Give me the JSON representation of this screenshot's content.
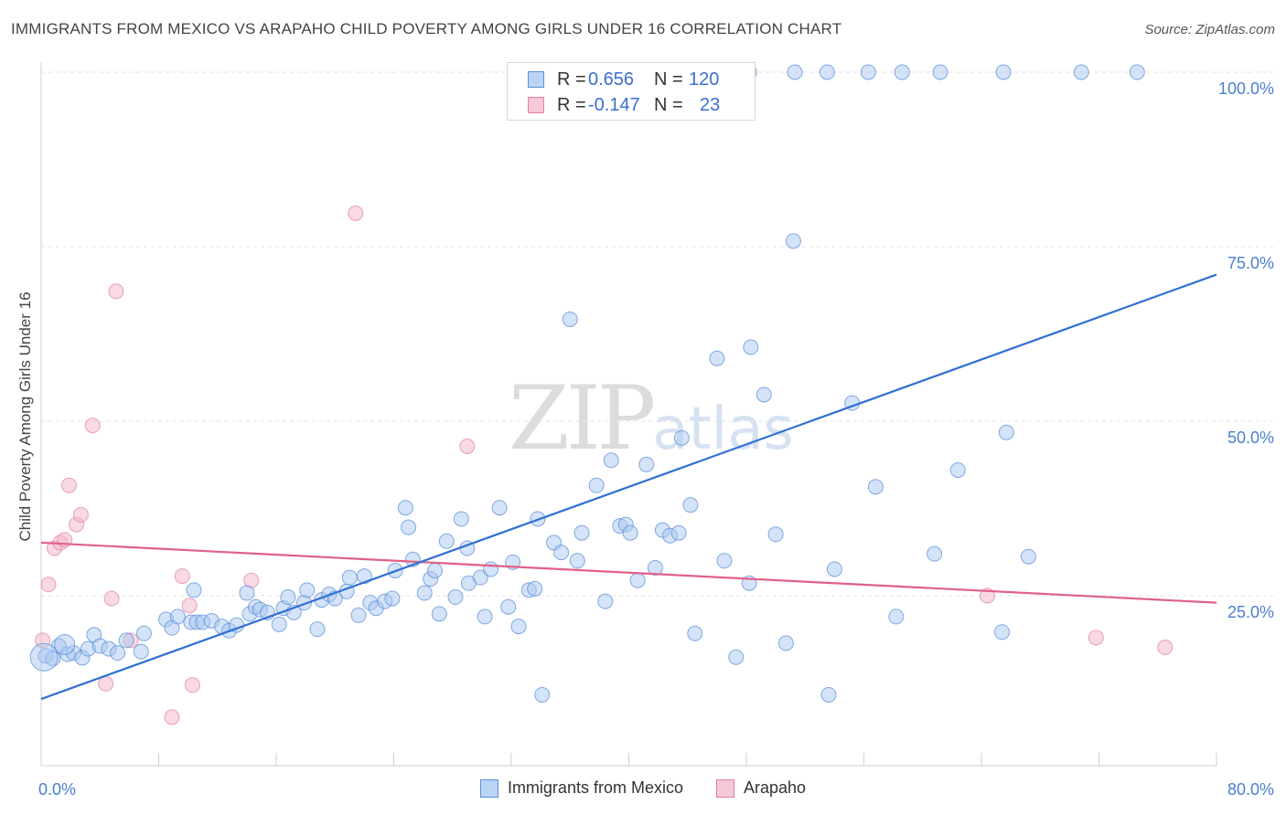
{
  "header": {
    "title": "IMMIGRANTS FROM MEXICO VS ARAPAHO CHILD POVERTY AMONG GIRLS UNDER 16 CORRELATION CHART",
    "source": "Source: ZipAtlas.com"
  },
  "watermark": {
    "zip": "ZIP",
    "atlas": "atlas"
  },
  "legend": {
    "rows": [
      {
        "r_label": "R =",
        "r_value": "0.656",
        "n_label": "N =",
        "n_value": "120"
      },
      {
        "r_label": "R =",
        "r_value": "-0.147",
        "n_label": "N =",
        "n_value": "23"
      }
    ]
  },
  "bottom_legend": {
    "series1": "Immigrants from Mexico",
    "series2": "Arapaho"
  },
  "chart_data": {
    "type": "scatter",
    "title": "IMMIGRANTS FROM MEXICO VS ARAPAHO CHILD POVERTY AMONG GIRLS UNDER 16 CORRELATION CHART",
    "xlabel": "",
    "ylabel": "Child Poverty Among Girls Under 16",
    "xlim": [
      0,
      80
    ],
    "ylim": [
      0,
      100
    ],
    "x_tick_labels": [
      "0.0%",
      "80.0%"
    ],
    "y_ticks": [
      {
        "value": 100,
        "label": "100.0%"
      },
      {
        "value": 75,
        "label": "75.0%"
      },
      {
        "value": 50,
        "label": "50.0%"
      },
      {
        "value": 25,
        "label": "25.0%"
      }
    ],
    "grid": true,
    "colors": {
      "series1": "#5b8fd9",
      "series1_fill": "#a9c8f0",
      "series2": "#e07fa0",
      "series2_fill": "#f4b9cc",
      "trend1": "#2f6fd3",
      "trend2": "#e0608a"
    },
    "series": [
      {
        "name": "Immigrants from Mexico",
        "trend": {
          "x": [
            0,
            80
          ],
          "y": [
            10.2,
            71.0
          ]
        },
        "points": [
          [
            0.3,
            16.4
          ],
          [
            0.8,
            16.0
          ],
          [
            1.2,
            17.8
          ],
          [
            1.8,
            16.6
          ],
          [
            2.2,
            16.8
          ],
          [
            2.8,
            16.1
          ],
          [
            3.2,
            17.4
          ],
          [
            3.6,
            19.4
          ],
          [
            4.0,
            17.8
          ],
          [
            4.6,
            17.4
          ],
          [
            5.2,
            16.8
          ],
          [
            5.8,
            18.6
          ],
          [
            6.8,
            17.0
          ],
          [
            7.0,
            19.6
          ],
          [
            8.5,
            21.6
          ],
          [
            8.9,
            20.4
          ],
          [
            9.3,
            22.0
          ],
          [
            10.2,
            21.2
          ],
          [
            10.4,
            25.8
          ],
          [
            10.6,
            21.2
          ],
          [
            11.0,
            21.2
          ],
          [
            11.6,
            21.4
          ],
          [
            12.3,
            20.6
          ],
          [
            12.8,
            20.0
          ],
          [
            13.3,
            20.8
          ],
          [
            14.0,
            25.4
          ],
          [
            14.2,
            22.4
          ],
          [
            14.6,
            23.4
          ],
          [
            14.9,
            23.0
          ],
          [
            15.4,
            22.6
          ],
          [
            16.2,
            20.9
          ],
          [
            16.5,
            23.2
          ],
          [
            16.8,
            24.8
          ],
          [
            17.2,
            22.6
          ],
          [
            17.9,
            24.0
          ],
          [
            18.1,
            25.8
          ],
          [
            18.8,
            20.2
          ],
          [
            19.1,
            24.4
          ],
          [
            19.6,
            25.2
          ],
          [
            20.0,
            24.6
          ],
          [
            20.8,
            25.6
          ],
          [
            21.0,
            27.6
          ],
          [
            21.6,
            22.2
          ],
          [
            22.0,
            27.8
          ],
          [
            22.4,
            24.0
          ],
          [
            22.8,
            23.2
          ],
          [
            23.4,
            24.2
          ],
          [
            23.9,
            24.6
          ],
          [
            24.1,
            28.6
          ],
          [
            24.8,
            37.6
          ],
          [
            25.0,
            34.8
          ],
          [
            25.3,
            30.2
          ],
          [
            26.1,
            25.4
          ],
          [
            26.5,
            27.4
          ],
          [
            26.8,
            28.6
          ],
          [
            27.1,
            22.4
          ],
          [
            27.6,
            32.8
          ],
          [
            28.2,
            24.8
          ],
          [
            28.6,
            36.0
          ],
          [
            29.0,
            31.8
          ],
          [
            29.1,
            26.8
          ],
          [
            29.9,
            27.6
          ],
          [
            30.2,
            22.0
          ],
          [
            30.6,
            28.8
          ],
          [
            31.2,
            37.6
          ],
          [
            31.8,
            23.4
          ],
          [
            32.1,
            29.8
          ],
          [
            32.5,
            20.6
          ],
          [
            33.2,
            25.8
          ],
          [
            33.6,
            26.0
          ],
          [
            33.8,
            36.0
          ],
          [
            34.1,
            10.8
          ],
          [
            34.9,
            32.6
          ],
          [
            35.4,
            31.2
          ],
          [
            36.0,
            64.6
          ],
          [
            36.5,
            30.0
          ],
          [
            36.8,
            34.0
          ],
          [
            37.8,
            40.8
          ],
          [
            38.4,
            24.2
          ],
          [
            38.8,
            44.4
          ],
          [
            39.4,
            35.0
          ],
          [
            39.8,
            35.2
          ],
          [
            40.1,
            34.0
          ],
          [
            40.6,
            27.2
          ],
          [
            41.2,
            43.8
          ],
          [
            41.8,
            29.0
          ],
          [
            42.3,
            34.4
          ],
          [
            42.8,
            33.6
          ],
          [
            43.4,
            34.0
          ],
          [
            43.6,
            47.6
          ],
          [
            44.2,
            38.0
          ],
          [
            44.5,
            19.6
          ],
          [
            46.0,
            59.0
          ],
          [
            46.5,
            30.0
          ],
          [
            47.3,
            16.2
          ],
          [
            48.2,
            26.8
          ],
          [
            48.3,
            60.6
          ],
          [
            49.2,
            53.8
          ],
          [
            50.0,
            33.8
          ],
          [
            50.7,
            18.2
          ],
          [
            51.2,
            75.8
          ],
          [
            53.6,
            10.8
          ],
          [
            54.0,
            28.8
          ],
          [
            55.2,
            52.6
          ],
          [
            56.8,
            40.6
          ],
          [
            58.2,
            22.0
          ],
          [
            60.8,
            31.0
          ],
          [
            62.4,
            43.0
          ],
          [
            65.4,
            19.8
          ],
          [
            65.7,
            48.4
          ],
          [
            67.2,
            30.6
          ],
          [
            48.2,
            100.0
          ],
          [
            51.3,
            100.0
          ],
          [
            53.5,
            100.0
          ],
          [
            56.3,
            100.0
          ],
          [
            58.6,
            100.0
          ],
          [
            61.2,
            100.0
          ],
          [
            65.5,
            100.0
          ],
          [
            70.8,
            100.0
          ],
          [
            74.6,
            100.0
          ]
        ],
        "big_points": [
          [
            0.2,
            16.2
          ],
          [
            1.6,
            18.0
          ]
        ]
      },
      {
        "name": "Arapaho",
        "trend": {
          "x": [
            0,
            80
          ],
          "y": [
            32.6,
            24.0
          ]
        },
        "points": [
          [
            0.1,
            18.6
          ],
          [
            0.5,
            26.6
          ],
          [
            0.9,
            31.8
          ],
          [
            1.3,
            32.6
          ],
          [
            1.6,
            33.0
          ],
          [
            1.9,
            40.8
          ],
          [
            2.4,
            35.2
          ],
          [
            2.7,
            36.6
          ],
          [
            3.5,
            49.4
          ],
          [
            4.4,
            12.4
          ],
          [
            4.8,
            24.6
          ],
          [
            5.1,
            68.6
          ],
          [
            6.1,
            18.6
          ],
          [
            8.9,
            7.6
          ],
          [
            9.6,
            27.8
          ],
          [
            10.1,
            23.6
          ],
          [
            10.3,
            12.2
          ],
          [
            14.3,
            27.2
          ],
          [
            21.4,
            79.8
          ],
          [
            29.0,
            46.4
          ],
          [
            64.4,
            25.0
          ],
          [
            71.8,
            19.0
          ],
          [
            76.5,
            17.6
          ]
        ]
      }
    ]
  }
}
